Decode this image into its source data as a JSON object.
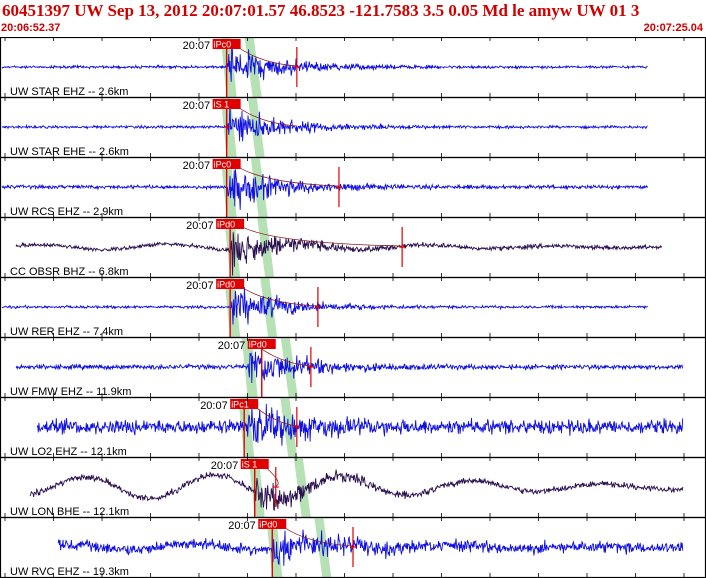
{
  "header": {
    "title": "60451397 UW Sep 13, 2012 20:07:01.57   46.8523 -121.7583  3.5 0.05 Md le amyw UW 01   3",
    "start_time": "20:06:52.37",
    "end_time": "20:07:25.04"
  },
  "colors": {
    "trace_blue": "#1010e0",
    "trace_dark": "#2a1050",
    "pick_red": "#e00000",
    "window_green": "#a8dca8",
    "panel_border": "#000000"
  },
  "chart_data": {
    "type": "line",
    "title": "60451397 UW Sep 13, 2012 20:07:01.57",
    "time_window": [
      "20:06:52.37",
      "20:07:25.04"
    ],
    "traces": [
      {
        "label": "UW STAR EHZ -- 2.6km",
        "time_tag": "20:07",
        "pick": "iPc0",
        "color": "blue",
        "data_start": 0.0,
        "data_end": 0.92,
        "p_onset": 0.32,
        "s_pick": 0.42,
        "coda_end": 0.42,
        "noise": 0.05,
        "peak": 0.85,
        "long_period": 0
      },
      {
        "label": "UW STAR EHE -- 2.6km",
        "time_tag": "20:07",
        "pick": "iS 1",
        "color": "blue",
        "data_start": 0.0,
        "data_end": 0.92,
        "p_onset": 0.32,
        "s_pick": 0.32,
        "coda_end": 0.42,
        "noise": 0.05,
        "peak": 0.85,
        "long_period": 0
      },
      {
        "label": "UW RCS EHZ -- 2.9km",
        "time_tag": "20:07",
        "pick": "iPc0",
        "color": "blue",
        "data_start": 0.0,
        "data_end": 0.92,
        "p_onset": 0.32,
        "s_pick": 0.48,
        "coda_end": 0.48,
        "noise": 0.07,
        "peak": 0.85,
        "long_period": 0
      },
      {
        "label": "CC OBSR BHZ -- 6.8km",
        "time_tag": "20:07",
        "pick": "iPd0",
        "color": "dark",
        "data_start": 0.02,
        "data_end": 0.94,
        "p_onset": 0.325,
        "s_pick": 0.57,
        "coda_end": 0.57,
        "noise": 0.08,
        "peak": 0.8,
        "long_period": 0.12
      },
      {
        "label": "UW RER EHZ -- 7.4km",
        "time_tag": "20:07",
        "pick": "iPd0",
        "color": "blue",
        "data_start": 0.0,
        "data_end": 0.92,
        "p_onset": 0.325,
        "s_pick": 0.45,
        "coda_end": 0.45,
        "noise": 0.05,
        "peak": 0.85,
        "long_period": 0
      },
      {
        "label": "UW FMW EHZ -- 11.9km",
        "time_tag": "20:07",
        "pick": "iPd0",
        "color": "blue",
        "data_start": 0.02,
        "data_end": 0.97,
        "p_onset": 0.35,
        "s_pick": 0.44,
        "coda_end": 0.44,
        "noise": 0.09,
        "peak": 0.85,
        "long_period": 0
      },
      {
        "label": "UW LO2 EHZ -- 12.1km",
        "time_tag": "20:07",
        "pick": "iPc1",
        "color": "blue",
        "data_start": 0.05,
        "data_end": 0.97,
        "p_onset": 0.345,
        "s_pick": 0.42,
        "coda_end": 0.42,
        "noise": 0.28,
        "peak": 0.75,
        "long_period": 0
      },
      {
        "label": "UW LON BHE -- 12.1km",
        "time_tag": "20:07",
        "pick": "iS 1",
        "color": "dark",
        "data_start": 0.04,
        "data_end": 0.97,
        "p_onset": 0.36,
        "s_pick": 0.39,
        "coda_end": 0.39,
        "noise": 0.12,
        "peak": 0.6,
        "long_period": 0.45
      },
      {
        "label": "UW RVC EHZ -- 19.3km",
        "time_tag": "20:07",
        "pick": "iPd0",
        "color": "blue",
        "data_start": 0.08,
        "data_end": 0.97,
        "p_onset": 0.385,
        "s_pick": 0.5,
        "coda_end": 0.5,
        "noise": 0.22,
        "peak": 0.7,
        "long_period": 0.12
      }
    ]
  }
}
